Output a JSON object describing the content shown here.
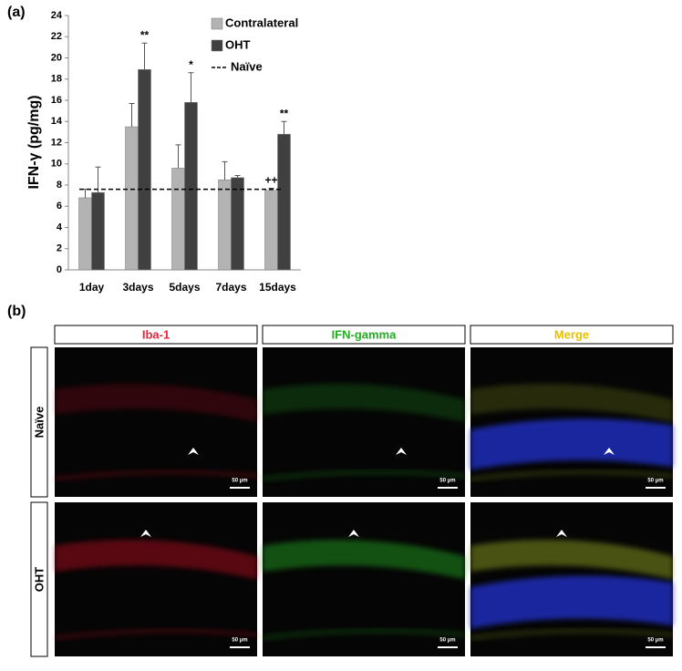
{
  "panel_labels": [
    "(a)",
    "(b)"
  ],
  "chart_data": {
    "type": "bar",
    "ylabel": "IFN-γ (pg/mg)",
    "categories": [
      "1day",
      "3days",
      "5days",
      "7days",
      "15days"
    ],
    "series": [
      {
        "name": "Contralateral",
        "color": "#b3b3b3",
        "values": [
          6.8,
          13.5,
          9.6,
          8.5,
          7.5
        ],
        "errors": [
          0.8,
          2.2,
          2.2,
          1.7,
          0.2
        ],
        "annotations": [
          null,
          null,
          null,
          null,
          "++"
        ]
      },
      {
        "name": "OHT",
        "color": "#404040",
        "values": [
          7.3,
          18.9,
          15.8,
          8.7,
          12.8
        ],
        "errors": [
          2.4,
          2.5,
          2.8,
          0.2,
          1.2
        ],
        "annotations": [
          null,
          "**",
          "*",
          null,
          "**"
        ]
      }
    ],
    "reference_lines": [
      {
        "name": "Naïve",
        "value": 7.6,
        "style": "dashed",
        "color": "#000000"
      }
    ],
    "ylim": [
      0,
      24
    ],
    "yticks": [
      0,
      2,
      4,
      6,
      8,
      10,
      12,
      14,
      16,
      18,
      20,
      22,
      24
    ],
    "legend": "top-right",
    "grid": false
  },
  "image_panel": {
    "columns": [
      "Iba-1",
      "IFN-gamma",
      "Merge"
    ],
    "column_colors": [
      "#e0283c",
      "#22b022",
      "#e8c000"
    ],
    "rows": [
      "Naïve",
      "OHT"
    ],
    "scale_bar": "50 µm"
  }
}
